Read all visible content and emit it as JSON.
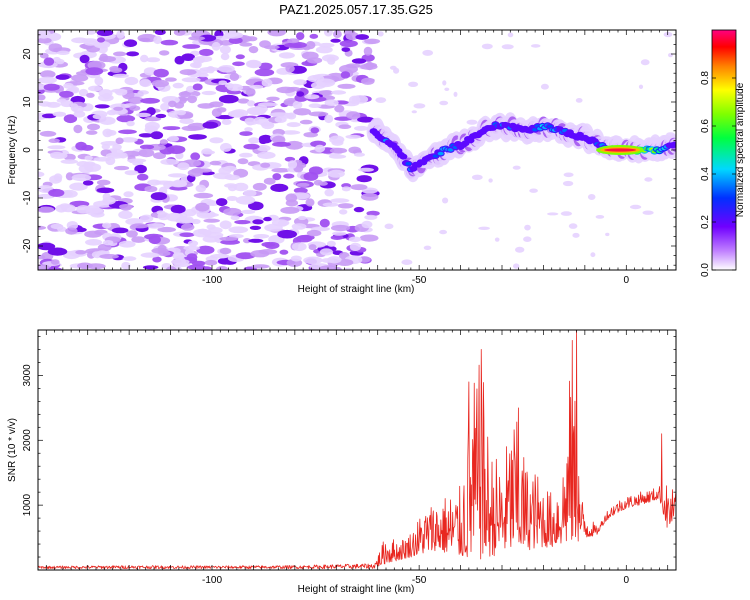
{
  "title": "PAZ1.2025.057.17.35.G25",
  "colors": {
    "snr_line": "#e8261f",
    "spectrogram_noise": "#a050f0",
    "spectrogram_peak": "#e8261f"
  },
  "chart_data": [
    {
      "type": "heatmap",
      "xlabel": "Height of straight line (km)",
      "ylabel": "Frequency (Hz)",
      "xlim": [
        -142,
        12
      ],
      "ylim": [
        -25,
        25
      ],
      "xticks": [
        -100,
        -50,
        0
      ],
      "yticks": [
        -20,
        -10,
        0,
        10,
        20
      ],
      "colorbar": {
        "label": "Normalized spectral amplitude",
        "range": [
          0.0,
          1.0
        ],
        "ticks": [
          "0.0",
          "0.2",
          "0.4",
          "0.6",
          "0.8"
        ],
        "colormap": "rainbow (white/violet -> blue -> cyan -> green -> yellow -> red -> magenta)"
      },
      "features": {
        "noise_region_x": [
          -142,
          -61
        ],
        "signal_start_x": -61,
        "signal_track": {
          "x": [
            -61,
            -58,
            -55,
            -52,
            -48,
            -44,
            -40,
            -36,
            -32,
            -28,
            -24,
            -20,
            -16,
            -12,
            -8,
            -4,
            0,
            4,
            8,
            12
          ],
          "frequency": [
            4,
            2,
            0,
            -4,
            -2,
            0,
            1,
            3,
            5,
            5,
            4,
            5,
            4,
            3,
            2,
            0,
            0,
            0,
            0,
            1
          ],
          "amplitude": [
            0.3,
            0.4,
            0.2,
            0.4,
            0.3,
            0.5,
            0.3,
            0.3,
            0.4,
            0.4,
            0.3,
            0.5,
            0.4,
            0.3,
            0.3,
            0.6,
            0.95,
            0.9,
            0.6,
            0.3
          ]
        }
      }
    },
    {
      "type": "line",
      "xlabel": "Height of straight line (km)",
      "ylabel": "SNR (10 * v/v)",
      "xlim": [
        -142,
        12
      ],
      "ylim": [
        0,
        3700
      ],
      "xticks": [
        -100,
        -50,
        0
      ],
      "yticks": [
        1000,
        2000,
        3000
      ],
      "series": [
        {
          "envelope": {
            "x": [
              -142,
              -120,
              -100,
              -80,
              -61,
              -58,
              -55,
              -52,
              -49,
              -46,
              -43,
              -40,
              -37,
              -35,
              -33,
              -30,
              -27,
              -24,
              -21,
              -18,
              -15,
              -13,
              -11,
              -9,
              -7,
              -5,
              -3,
              0,
              3,
              6,
              8,
              10,
              12
            ],
            "y": [
              50,
              60,
              55,
              60,
              90,
              550,
              450,
              600,
              950,
              1100,
              1200,
              1300,
              2900,
              3300,
              1900,
              1700,
              2450,
              1650,
              1500,
              1200,
              1800,
              3650,
              1200,
              850,
              650,
              900,
              1050,
              1150,
              1200,
              1250,
              1300,
              1350,
              1200
            ],
            "baseline": [
              0,
              0,
              0,
              0,
              20,
              100,
              150,
              200,
              250,
              300,
              250,
              200,
              150,
              150,
              200,
              250,
              300,
              300,
              350,
              350,
              400,
              400,
              450,
              500,
              550,
              750,
              850,
              950,
              1000,
              1050,
              1100,
              600,
              800
            ]
          },
          "peaks": [
            {
              "x": -35,
              "y": 3400
            },
            {
              "x": -12,
              "y": 3700
            },
            {
              "x": -26,
              "y": 2500
            },
            {
              "x": -38,
              "y": 2900
            },
            {
              "x": 8.5,
              "y": 2100
            }
          ]
        }
      ]
    }
  ]
}
